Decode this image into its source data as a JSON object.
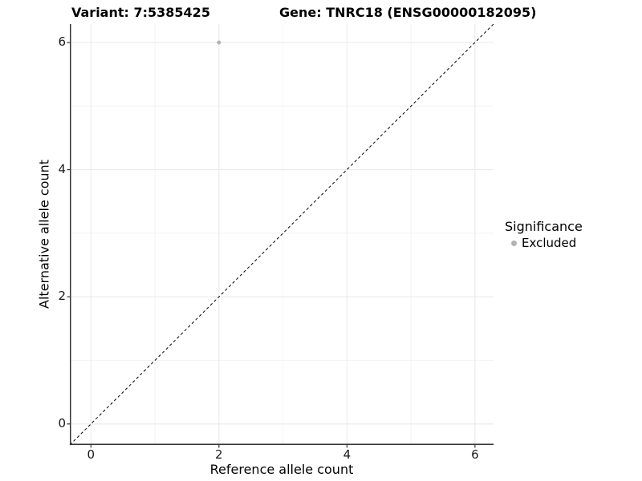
{
  "chart_data": {
    "type": "scatter",
    "title_left": "Variant: 7:5385425",
    "title_right": "Gene: TNRC18 (ENSG00000182095)",
    "xlabel": "Reference allele count",
    "ylabel": "Alternative allele count",
    "xlim": [
      -0.33,
      6.29
    ],
    "ylim": [
      -0.33,
      6.29
    ],
    "xticks": [
      0,
      2,
      4,
      6
    ],
    "yticks": [
      0,
      2,
      4,
      6
    ],
    "minor_ticks_x": [
      1,
      3,
      5
    ],
    "minor_ticks_y": [
      1,
      3,
      5
    ],
    "grid": true,
    "points": [
      {
        "x": 2,
        "y": 6,
        "series": "Excluded"
      }
    ],
    "identity_line": {
      "slope": 1,
      "intercept": 0,
      "style": "dashed"
    },
    "legend": {
      "title": "Significance",
      "position": "right",
      "entries": [
        {
          "label": "Excluded",
          "color": "#b3b3b3"
        }
      ]
    },
    "colors": {
      "point": "#b3b3b3",
      "grid_major": "#e8e8e8",
      "grid_minor": "#f3f3f3",
      "axis": "#333333",
      "dashed_line": "#000000",
      "tick_text": "#1a1a1a"
    }
  }
}
